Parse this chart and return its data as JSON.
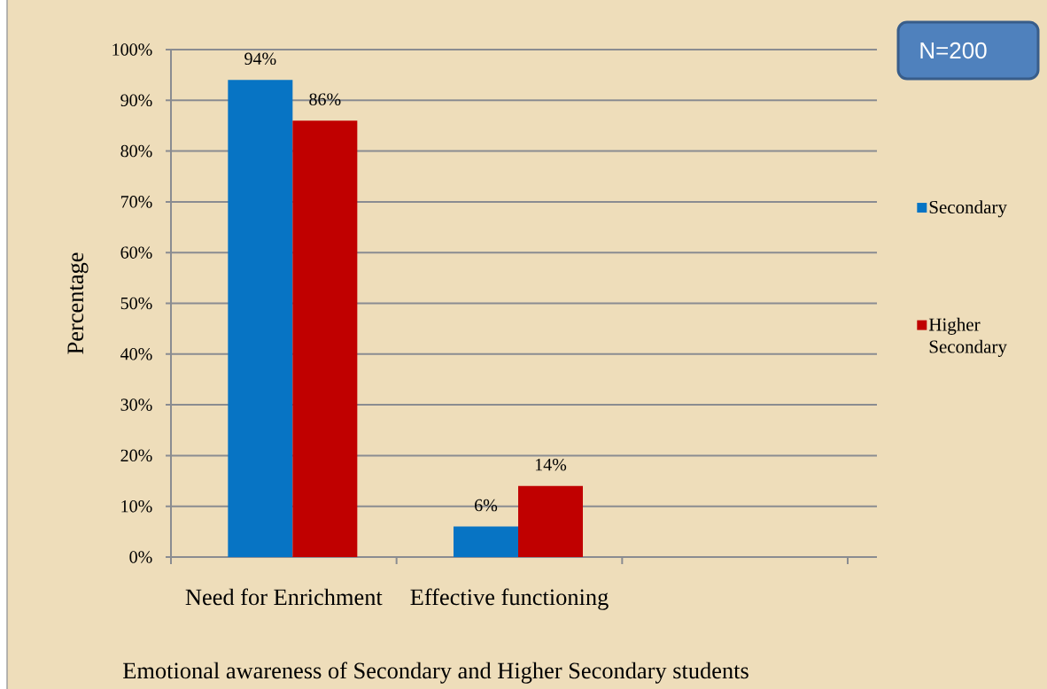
{
  "chart_data": {
    "type": "bar",
    "title": "Emotional awareness of Secondary and Higher Secondary students",
    "ylabel": "Percentage",
    "categories": [
      "Need for Enrichment",
      "Effective functioning",
      null
    ],
    "series": [
      {
        "name": "Secondary",
        "color": "#0774c4",
        "values": [
          94,
          6,
          null
        ],
        "value_labels": [
          "94%",
          "6%",
          null
        ]
      },
      {
        "name": "Higher Secondary",
        "color": "#c00000",
        "values": [
          86,
          14,
          null
        ],
        "value_labels": [
          "86%",
          "14%",
          null
        ]
      }
    ],
    "ylim": [
      0,
      100
    ],
    "yticks": [
      {
        "value": 0,
        "label": "0%"
      },
      {
        "value": 10,
        "label": "10%"
      },
      {
        "value": 20,
        "label": "20%"
      },
      {
        "value": 30,
        "label": "30%"
      },
      {
        "value": 40,
        "label": "40%"
      },
      {
        "value": 50,
        "label": "50%"
      },
      {
        "value": 60,
        "label": "60%"
      },
      {
        "value": 70,
        "label": "70%"
      },
      {
        "value": 80,
        "label": "80%"
      },
      {
        "value": 90,
        "label": "90%"
      },
      {
        "value": 100,
        "label": "100%"
      }
    ],
    "grid": "y",
    "legend": "right",
    "annotations": [
      "N=200"
    ]
  }
}
